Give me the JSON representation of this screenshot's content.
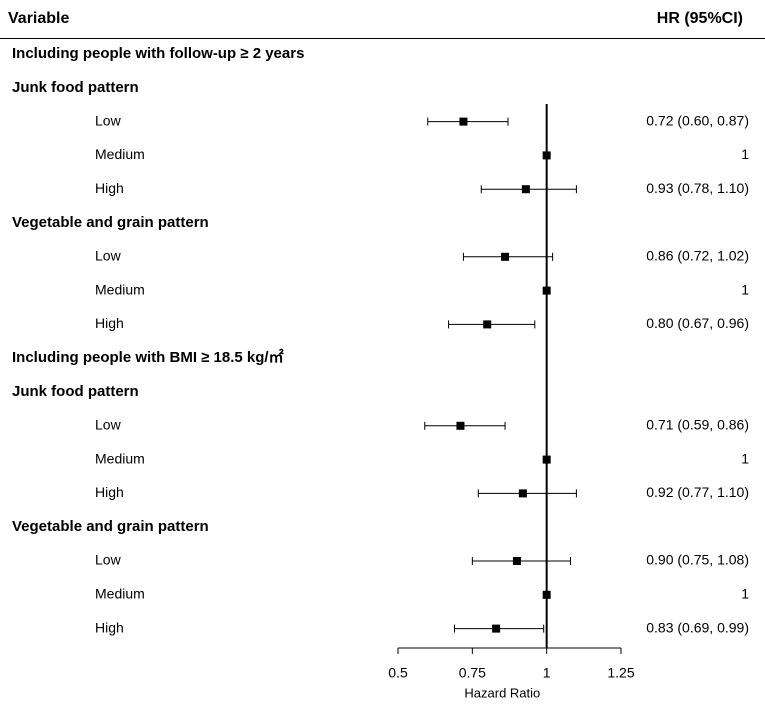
{
  "header": {
    "variable_label": "Variable",
    "hr_label": "HR (95%CI)"
  },
  "chart_data": {
    "type": "forest",
    "xlabel": "Hazard Ratio",
    "xlim": [
      0.5,
      1.25
    ],
    "xticks": [
      "0.5",
      "0.75",
      "1",
      "1.25"
    ],
    "reference_line": 1,
    "rows": [
      {
        "kind": "section",
        "text": "Including people with follow-up ≥ 2 years"
      },
      {
        "kind": "group",
        "text": "Junk food pattern"
      },
      {
        "kind": "item",
        "label": "Low",
        "hr": 0.72,
        "lo": 0.6,
        "hi": 0.87,
        "text": "0.72 (0.60, 0.87)"
      },
      {
        "kind": "item",
        "label": "Medium",
        "hr": 1,
        "lo": 1,
        "hi": 1,
        "text": "1"
      },
      {
        "kind": "item",
        "label": "High",
        "hr": 0.93,
        "lo": 0.78,
        "hi": 1.1,
        "text": "0.93 (0.78, 1.10)"
      },
      {
        "kind": "group",
        "text": "Vegetable and grain pattern"
      },
      {
        "kind": "item",
        "label": "Low",
        "hr": 0.86,
        "lo": 0.72,
        "hi": 1.02,
        "text": "0.86 (0.72, 1.02)"
      },
      {
        "kind": "item",
        "label": "Medium",
        "hr": 1,
        "lo": 1,
        "hi": 1,
        "text": "1"
      },
      {
        "kind": "item",
        "label": "High",
        "hr": 0.8,
        "lo": 0.67,
        "hi": 0.96,
        "text": "0.80 (0.67, 0.96)"
      },
      {
        "kind": "section",
        "text": "Including people with BMI ≥ 18.5 kg/㎡"
      },
      {
        "kind": "group",
        "text": "Junk food pattern"
      },
      {
        "kind": "item",
        "label": "Low",
        "hr": 0.71,
        "lo": 0.59,
        "hi": 0.86,
        "text": "0.71 (0.59, 0.86)"
      },
      {
        "kind": "item",
        "label": "Medium",
        "hr": 1,
        "lo": 1,
        "hi": 1,
        "text": "1"
      },
      {
        "kind": "item",
        "label": "High",
        "hr": 0.92,
        "lo": 0.77,
        "hi": 1.1,
        "text": "0.92 (0.77, 1.10)"
      },
      {
        "kind": "group",
        "text": "Vegetable and grain pattern"
      },
      {
        "kind": "item",
        "label": "Low",
        "hr": 0.9,
        "lo": 0.75,
        "hi": 1.08,
        "text": "0.90 (0.75, 1.08)"
      },
      {
        "kind": "item",
        "label": "Medium",
        "hr": 1,
        "lo": 1,
        "hi": 1,
        "text": "1"
      },
      {
        "kind": "item",
        "label": "High",
        "hr": 0.83,
        "lo": 0.69,
        "hi": 0.99,
        "text": "0.83 (0.69, 0.99)"
      }
    ]
  }
}
